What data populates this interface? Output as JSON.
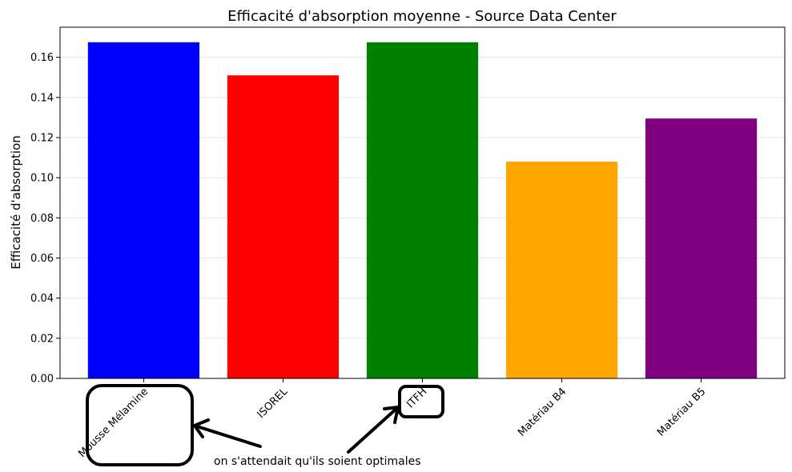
{
  "chart_data": {
    "type": "bar",
    "title": "Efficacité d'absorption moyenne - Source Data Center",
    "xlabel": "",
    "ylabel": "Efficacité d'absorption",
    "categories": [
      "Mousse Mélamine",
      "ISOREL",
      "ITFH",
      "Matériau B4",
      "Matériau B5"
    ],
    "values": [
      0.1675,
      0.151,
      0.1675,
      0.108,
      0.1295
    ],
    "colors": [
      "#0000ff",
      "#ff0000",
      "#008000",
      "#ffa500",
      "#800080"
    ],
    "ylim": [
      0,
      0.175
    ],
    "yticks": [
      "0.00",
      "0.02",
      "0.04",
      "0.06",
      "0.08",
      "0.10",
      "0.12",
      "0.14",
      "0.16"
    ],
    "grid": "horizontal",
    "legend": "none"
  },
  "annotation": {
    "text": "on s'attendait qu'ils soient optimales",
    "highlighted": [
      "Mousse Mélamine",
      "ITFH"
    ]
  }
}
